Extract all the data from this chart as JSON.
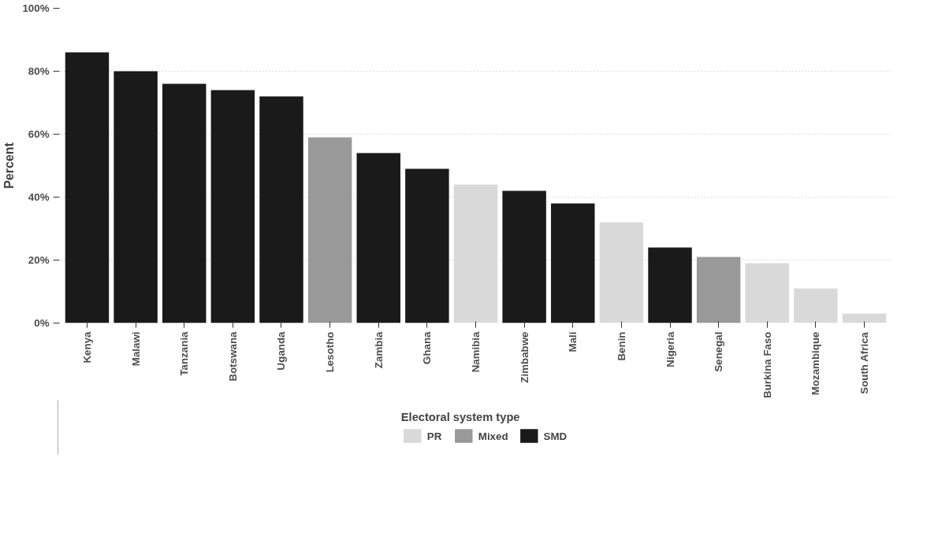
{
  "chart_data": {
    "type": "bar",
    "stacked": true,
    "ylabel": "Percent",
    "legend_title": "Electoral system type",
    "legend": "bottom",
    "grid": "y",
    "categories": [
      "Kenya",
      "Malawi",
      "Tanzania",
      "Botswana",
      "Uganda",
      "Lesotho",
      "Zambia",
      "Ghana",
      "Namibia",
      "Zimbabwe",
      "Mali",
      "Benin",
      "Nigeria",
      "Senegal",
      "Burkina Faso",
      "Mozambique",
      "South Africa"
    ],
    "series": [
      {
        "name": "PR",
        "color": "#d9d9d9",
        "values": [
          null,
          null,
          null,
          null,
          null,
          null,
          null,
          null,
          44,
          null,
          null,
          32,
          null,
          null,
          19,
          11,
          3
        ]
      },
      {
        "name": "Mixed",
        "color": "#999999",
        "values": [
          null,
          null,
          null,
          null,
          null,
          59,
          null,
          null,
          null,
          null,
          null,
          null,
          null,
          21,
          null,
          null,
          null
        ]
      },
      {
        "name": "SMD",
        "color": "#1a1a1a",
        "values": [
          86,
          80,
          76,
          74,
          72,
          null,
          54,
          49,
          null,
          42,
          38,
          null,
          24,
          null,
          null,
          null,
          null
        ]
      }
    ],
    "ylim": [
      0,
      100
    ],
    "yticks": [
      {
        "value": 0,
        "label": "0%"
      },
      {
        "value": 20,
        "label": "20%"
      },
      {
        "value": 40,
        "label": "40%"
      },
      {
        "value": 60,
        "label": "60%"
      },
      {
        "value": 80,
        "label": "80%"
      },
      {
        "value": 100,
        "label": "100%"
      }
    ]
  }
}
